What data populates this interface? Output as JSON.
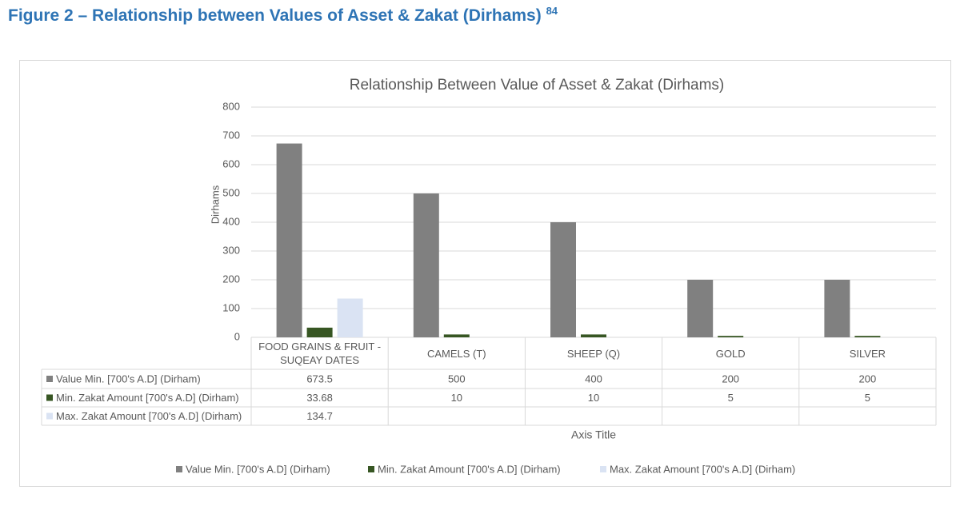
{
  "heading": {
    "title": "Figure 2 – Relationship between Values of Asset & Zakat (Dirhams)",
    "footnote": "84"
  },
  "chart_data": {
    "type": "bar",
    "title": "Relationship Between Value of Asset & Zakat (Dirhams)",
    "y_label": "Dirhams",
    "x_label": "Axis Title",
    "categories": [
      "FOOD GRAINS & FRUIT - SUQEAY DATES",
      "CAMELS (T)",
      "SHEEP (Q)",
      "GOLD",
      "SILVER"
    ],
    "series": [
      {
        "name": "Value Min. [700's A.D] (Dirham)",
        "color": "#808080",
        "values": [
          673.5,
          500,
          400,
          200,
          200
        ]
      },
      {
        "name": "Min. Zakat Amount [700's A.D] (Dirham)",
        "color": "#375623",
        "values": [
          33.68,
          10,
          10,
          5,
          5
        ]
      },
      {
        "name": "Max. Zakat Amount [700's A.D] (Dirham)",
        "color": "#dae3f3",
        "values": [
          134.7,
          null,
          null,
          null,
          null
        ]
      }
    ],
    "ylim": [
      0,
      800
    ],
    "yticks": [
      0,
      100,
      200,
      300,
      400,
      500,
      600,
      700,
      800
    ],
    "grid": true,
    "legend": "bottom"
  }
}
